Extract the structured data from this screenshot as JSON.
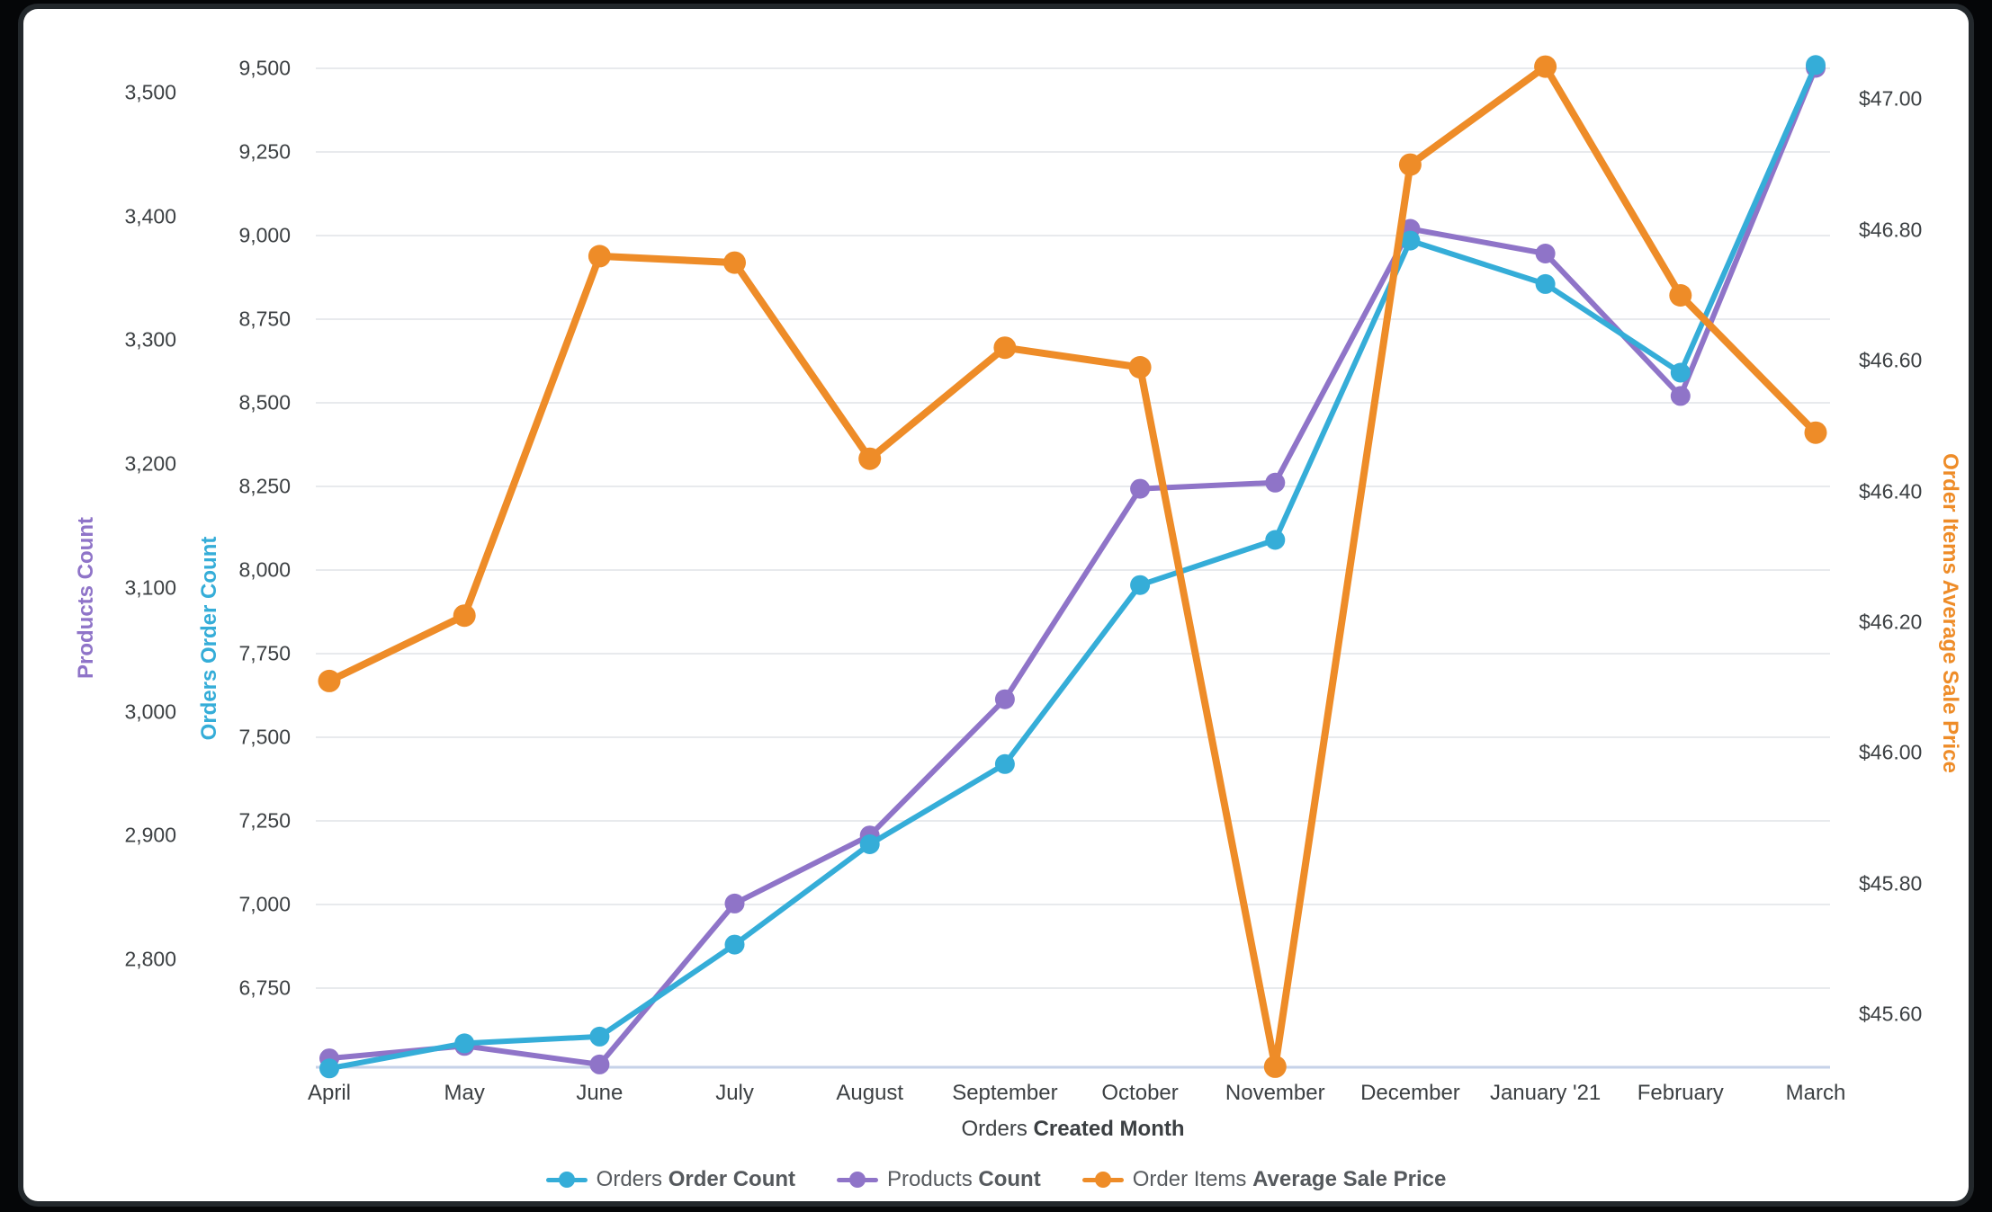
{
  "chart_data": {
    "type": "line",
    "x_axis": {
      "title_regular": "Orders",
      "title_bold": "Created Month",
      "categories": [
        "April",
        "May",
        "June",
        "July",
        "August",
        "September",
        "October",
        "November",
        "December",
        "January '21",
        "February",
        "March"
      ]
    },
    "axes": {
      "products": {
        "title": "Products Count",
        "color": "#8F74C8",
        "tick_labels": [
          "3,500",
          "3,400",
          "3,300",
          "3,200",
          "3,100",
          "3,000",
          "2,900",
          "2,800"
        ],
        "tick_values": [
          3500,
          3400,
          3300,
          3200,
          3100,
          3000,
          2900,
          2800
        ]
      },
      "orders": {
        "title": "Orders Order Count",
        "color": "#35ADD8",
        "tick_labels": [
          "9,500",
          "9,250",
          "9,000",
          "8,750",
          "8,500",
          "8,250",
          "8,000",
          "7,750",
          "7,500",
          "7,250",
          "7,000",
          "6,750"
        ],
        "tick_values": [
          9500,
          9250,
          9000,
          8750,
          8500,
          8250,
          8000,
          7750,
          7500,
          7250,
          7000,
          6750
        ]
      },
      "price": {
        "title": "Order Items Average Sale Price",
        "color": "#EE8C28",
        "tick_labels": [
          "$47.00",
          "$46.80",
          "$46.60",
          "$46.40",
          "$46.20",
          "$46.00",
          "$45.80",
          "$45.60"
        ],
        "tick_values": [
          47.0,
          46.8,
          46.6,
          46.4,
          46.2,
          46.0,
          45.8,
          45.6
        ]
      }
    },
    "series": [
      {
        "name_regular": "Orders",
        "name_bold": "Order Count",
        "axis": "orders",
        "color": "#35ADD8",
        "values": [
          6510,
          6585,
          6605,
          6880,
          7180,
          7420,
          7955,
          8090,
          8985,
          8855,
          8590,
          9510
        ]
      },
      {
        "name_regular": "Products",
        "name_bold": "Count",
        "axis": "products",
        "color": "#8F74C8",
        "values": [
          2720,
          2730,
          2715,
          2845,
          2900,
          3010,
          3180,
          3185,
          3390,
          3370,
          3255,
          3520
        ]
      },
      {
        "name_regular": "Order Items",
        "name_bold": "Average Sale Price",
        "axis": "price",
        "color": "#EE8C28",
        "values": [
          46.11,
          46.21,
          46.76,
          46.75,
          46.45,
          46.62,
          46.59,
          45.52,
          46.9,
          47.05,
          46.7,
          46.49
        ]
      }
    ],
    "grid": true,
    "legend_position": "bottom"
  }
}
